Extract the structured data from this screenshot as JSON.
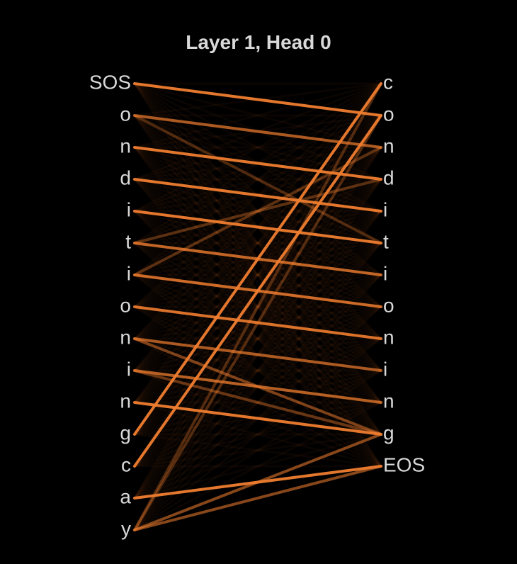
{
  "title": "Layer 1, Head 0",
  "left_tokens": [
    "SOS",
    "o",
    "n",
    "d",
    "i",
    "t",
    "i",
    "o",
    "n",
    "i",
    "n",
    "g",
    "c",
    "a",
    "y"
  ],
  "right_tokens": [
    "c",
    "o",
    "n",
    "d",
    "i",
    "t",
    "i",
    "o",
    "n",
    "i",
    "n",
    "g",
    "EOS"
  ],
  "colors": {
    "background": "#000000",
    "text": "#d9d9d9",
    "link": "#ef7d2f"
  },
  "strong_links": [
    [
      0,
      1,
      0.95
    ],
    [
      1,
      2,
      0.7
    ],
    [
      2,
      3,
      0.95
    ],
    [
      3,
      4,
      0.95
    ],
    [
      4,
      5,
      0.95
    ],
    [
      5,
      6,
      0.8
    ],
    [
      6,
      7,
      0.85
    ],
    [
      7,
      8,
      0.9
    ],
    [
      8,
      9,
      0.7
    ],
    [
      9,
      10,
      0.75
    ],
    [
      10,
      11,
      0.95
    ],
    [
      11,
      0,
      0.95
    ],
    [
      12,
      1,
      0.95
    ],
    [
      13,
      12,
      0.95
    ],
    [
      14,
      11,
      0.55
    ],
    [
      14,
      12,
      0.55
    ],
    [
      8,
      11,
      0.5
    ],
    [
      9,
      11,
      0.4
    ],
    [
      6,
      2,
      0.35
    ],
    [
      5,
      3,
      0.35
    ],
    [
      1,
      5,
      0.3
    ],
    [
      14,
      1,
      0.3
    ],
    [
      14,
      0,
      0.3
    ]
  ]
}
